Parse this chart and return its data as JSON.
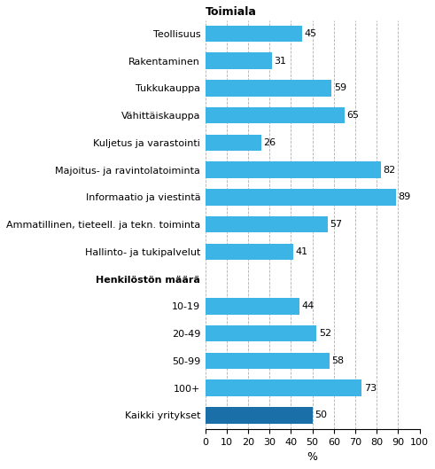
{
  "title": "Toimiala",
  "section_header": "Henkilöstön määrä",
  "rows": [
    {
      "label": "Teollisuus",
      "value": 45,
      "color": "#3cb4e6",
      "is_header": false
    },
    {
      "label": "Rakentaminen",
      "value": 31,
      "color": "#3cb4e6",
      "is_header": false
    },
    {
      "label": "Tukkukauppa",
      "value": 59,
      "color": "#3cb4e6",
      "is_header": false
    },
    {
      "label": "Vähittäiskauppa",
      "value": 65,
      "color": "#3cb4e6",
      "is_header": false
    },
    {
      "label": "Kuljetus ja varastointi",
      "value": 26,
      "color": "#3cb4e6",
      "is_header": false
    },
    {
      "label": "Majoitus- ja ravintolatoiminta",
      "value": 82,
      "color": "#3cb4e6",
      "is_header": false
    },
    {
      "label": "Informaatio ja viestintä",
      "value": 89,
      "color": "#3cb4e6",
      "is_header": false
    },
    {
      "label": "Ammatillinen, tieteell. ja tekn. toiminta",
      "value": 57,
      "color": "#3cb4e6",
      "is_header": false
    },
    {
      "label": "Hallinto- ja tukipalvelut",
      "value": 41,
      "color": "#3cb4e6",
      "is_header": false
    },
    {
      "label": "Henkilöstön määrä",
      "value": null,
      "color": null,
      "is_header": true
    },
    {
      "label": "10-19",
      "value": 44,
      "color": "#3cb4e6",
      "is_header": false
    },
    {
      "label": "20-49",
      "value": 52,
      "color": "#3cb4e6",
      "is_header": false
    },
    {
      "label": "50-99",
      "value": 58,
      "color": "#3cb4e6",
      "is_header": false
    },
    {
      "label": "100+",
      "value": 73,
      "color": "#3cb4e6",
      "is_header": false
    },
    {
      "label": "Kaikki yritykset",
      "value": 50,
      "color": "#1a6fa8",
      "is_header": false
    }
  ],
  "xlim": [
    0,
    100
  ],
  "xticks": [
    0,
    10,
    20,
    30,
    40,
    50,
    60,
    70,
    80,
    90,
    100
  ],
  "xlabel": "%",
  "background_color": "#ffffff",
  "grid_color": "#b0b0b0"
}
